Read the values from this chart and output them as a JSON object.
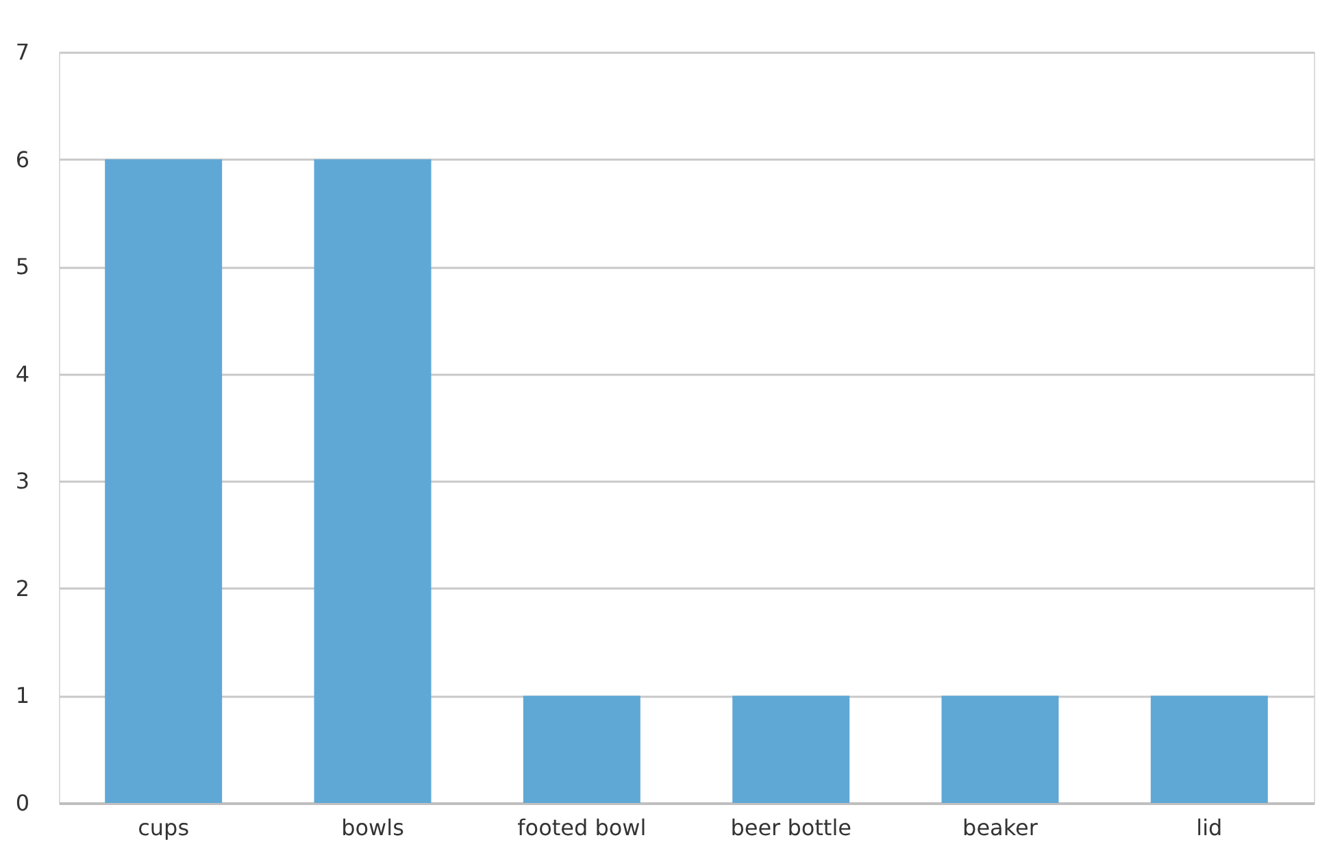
{
  "chart_data": {
    "type": "bar",
    "categories": [
      "cups",
      "bowls",
      "footed bowl",
      "beer bottle",
      "beaker",
      "lid"
    ],
    "values": [
      6,
      6,
      1,
      1,
      1,
      1
    ],
    "color": "#5fa8d6",
    "ylim": [
      0,
      7
    ],
    "yticks": [
      0,
      1,
      2,
      3,
      4,
      5,
      6,
      7
    ],
    "grid": "y"
  }
}
